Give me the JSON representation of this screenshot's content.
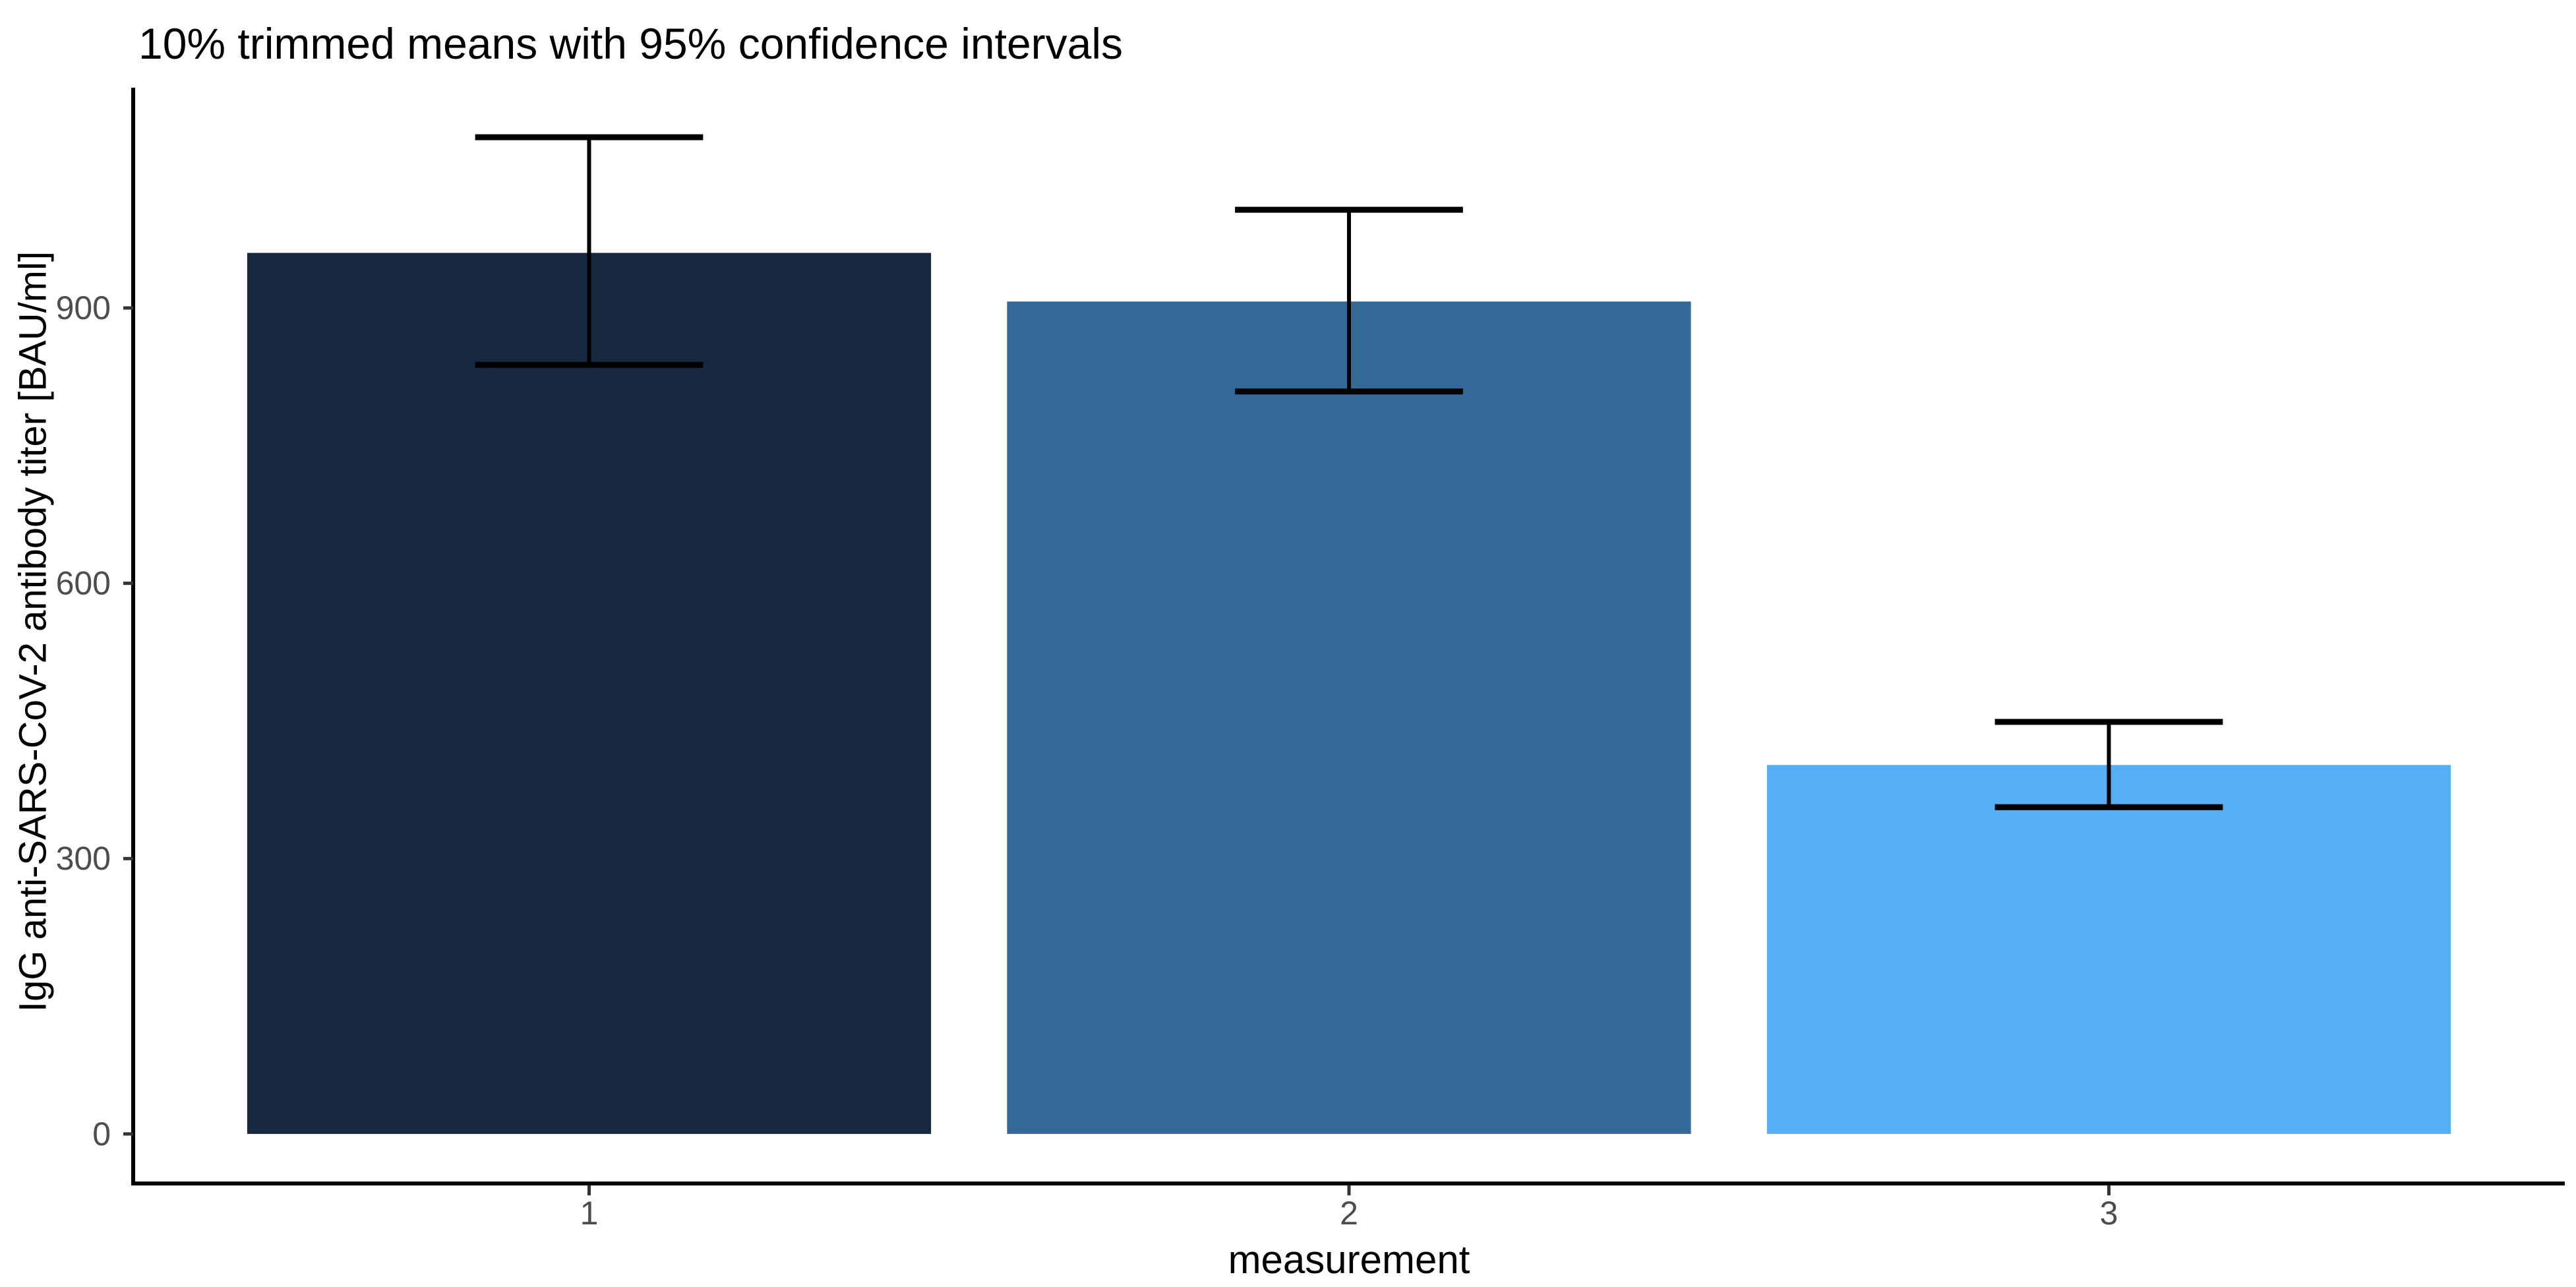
{
  "chart_data": {
    "type": "bar",
    "title": "10% trimmed means with 95% confidence intervals",
    "xlabel": "measurement",
    "ylabel": "IgG anti-SARS-CoV-2 antibody titer [BAU/ml]",
    "categories": [
      "1",
      "2",
      "3"
    ],
    "values": [
      960,
      907,
      402
    ],
    "error_bars": [
      {
        "lower": 838,
        "upper": 1086
      },
      {
        "lower": 809,
        "upper": 1007
      },
      {
        "lower": 356,
        "upper": 449
      }
    ],
    "yticks": [
      0,
      300,
      600,
      900
    ],
    "ylim": [
      -54,
      1140
    ],
    "grid": false,
    "legend": false,
    "bar_colors": [
      "#16293E",
      "#356A98",
      "#55AFF4"
    ],
    "axis_line_color": "#000000",
    "tick_mark_color": "#333333",
    "tick_label_color": "#4D4D4D",
    "error_bar_color": "#000000"
  }
}
